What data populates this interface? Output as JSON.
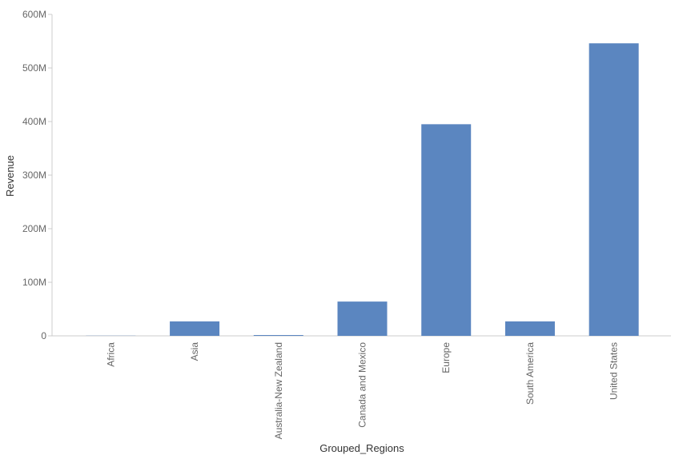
{
  "chart_data": {
    "type": "bar",
    "x_label": "Grouped_Regions",
    "y_label": "Revenue",
    "categories": [
      "Africa",
      "Asia",
      "Australia-New Zealand",
      "Canada and Mexico",
      "Europe",
      "South America",
      "United States"
    ],
    "values": [
      300000,
      27000000,
      1500000,
      64000000,
      395000000,
      27000000,
      546000000
    ],
    "color": "#5b86c0",
    "ylim": [
      0,
      600000000
    ],
    "yticks": [
      0,
      {
        "value": 100000000,
        "label": "100M"
      },
      {
        "value": 200000000,
        "label": "200M"
      },
      {
        "value": 300000000,
        "label": "300M"
      },
      {
        "value": 400000000,
        "label": "400M"
      },
      {
        "value": 500000000,
        "label": "500M"
      },
      {
        "value": 600000000,
        "label": "600M"
      }
    ]
  }
}
